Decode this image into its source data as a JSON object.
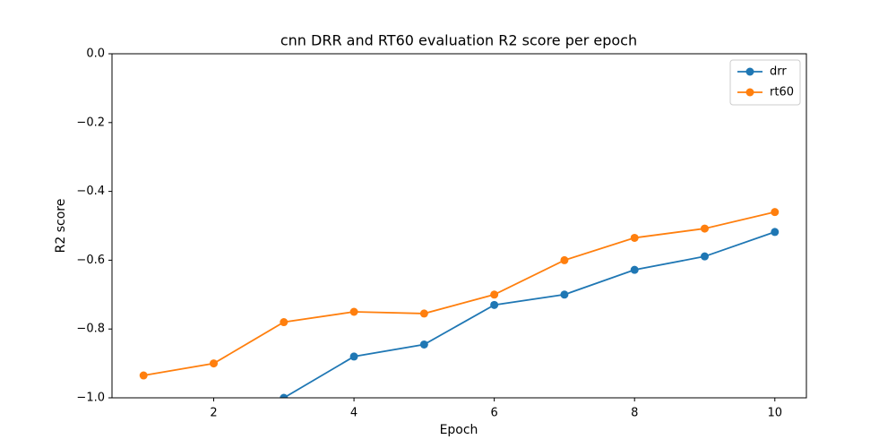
{
  "chart_data": {
    "type": "line",
    "title": "cnn DRR and RT60 evaluation R2 score per epoch",
    "xlabel": "Epoch",
    "ylabel": "R2 score",
    "x": [
      1,
      2,
      3,
      4,
      5,
      6,
      7,
      8,
      9,
      10
    ],
    "series": [
      {
        "name": "drr",
        "color": "#1f77b4",
        "values": [
          null,
          null,
          -1.0,
          -0.88,
          -0.845,
          -0.73,
          -0.7,
          -0.628,
          -0.589,
          -0.518
        ]
      },
      {
        "name": "rt60",
        "color": "#ff7f0e",
        "values": [
          -0.935,
          -0.9,
          -0.78,
          -0.75,
          -0.755,
          -0.7,
          -0.6,
          -0.535,
          -0.508,
          -0.46
        ]
      }
    ],
    "xlim": [
      0.55,
      10.45
    ],
    "ylim": [
      -1.0,
      0.0
    ],
    "xticks": [
      2,
      4,
      6,
      8,
      10
    ],
    "yticks": [
      {
        "value": -1.0,
        "label": "−1.0"
      },
      {
        "value": -0.8,
        "label": "−0.8"
      },
      {
        "value": -0.6,
        "label": "−0.6"
      },
      {
        "value": -0.4,
        "label": "−0.4"
      },
      {
        "value": -0.2,
        "label": "−0.2"
      },
      {
        "value": 0.0,
        "label": "0.0"
      }
    ],
    "legend": "upper right"
  }
}
